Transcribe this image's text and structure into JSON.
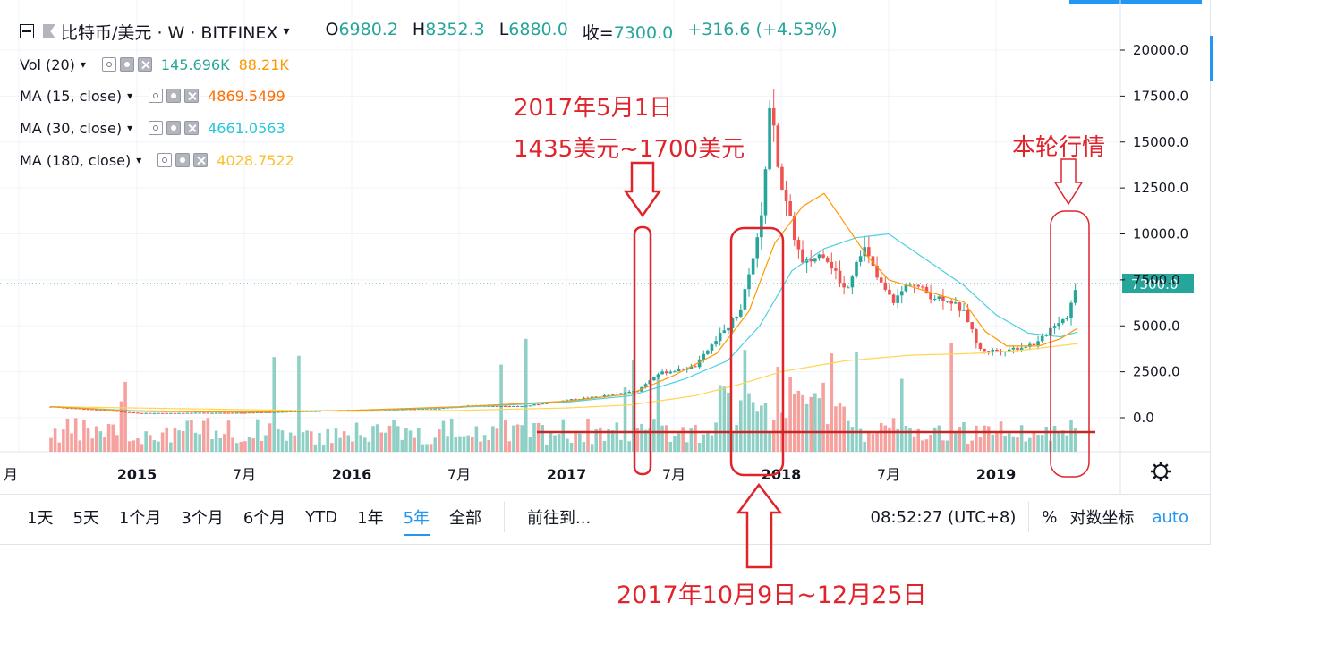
{
  "header": {
    "symbol": "比特币/美元 · W · BITFINEX",
    "open_label": "O",
    "open": "6980.2",
    "high_label": "H",
    "high": "8352.3",
    "low_label": "L",
    "low": "6880.0",
    "close_label": "收=",
    "close": "7300.0",
    "change": "+316.6 (+4.53%)"
  },
  "indicators": [
    {
      "name": "Vol (20)",
      "values": [
        "145.696K",
        "88.21K"
      ],
      "colors": [
        "#26a69a",
        "#ff9800"
      ]
    },
    {
      "name": "MA (15, close)",
      "values": [
        "4869.5499"
      ],
      "colors": [
        "#ff6d00"
      ]
    },
    {
      "name": "MA (30, close)",
      "values": [
        "4661.0563"
      ],
      "colors": [
        "#26c6da"
      ]
    },
    {
      "name": "MA (180, close)",
      "values": [
        "4028.7522"
      ],
      "colors": [
        "#fbc02d"
      ]
    }
  ],
  "toolbar": {
    "timeframes": [
      "1天",
      "5天",
      "1个月",
      "3个月",
      "6个月",
      "YTD",
      "1年",
      "5年",
      "全部"
    ],
    "active": "5年",
    "goto": "前往到...",
    "time": "08:52:27 (UTC+8)",
    "percent": "%",
    "log": "对数坐标",
    "auto": "auto"
  },
  "annotations": {
    "may": "2017年5月1日",
    "range": "1435美元~1700美元",
    "current": "本轮行情",
    "octdec": "2017年10月9日~12月25日"
  },
  "chart_data": {
    "type": "candlestick",
    "x_ticks": [
      "月",
      "2015",
      "7月",
      "2016",
      "7月",
      "2017",
      "7月",
      "2018",
      "7月",
      "2019"
    ],
    "y_ticks": [
      0,
      2500,
      5000,
      7500,
      10000,
      12500,
      15000,
      17500,
      20000
    ],
    "y_tick_labels": [
      "0.0",
      "2500.0",
      "5000.0",
      "7500.0",
      "10000.0",
      "12500.0",
      "15000.0",
      "17500.0",
      "20000.0"
    ],
    "last_price": 7300.0,
    "last_price_label": "7300.0",
    "colors": {
      "up": "#26a69a",
      "down": "#ef5350",
      "vol_up": "#8fd0c6",
      "vol_down": "#f5a19e",
      "ma15": "#ff9800",
      "ma30": "#4dd0e1",
      "ma180": "#ffd54f"
    },
    "close_anchors": [
      [
        2014.6,
        600
      ],
      [
        2014.9,
        350
      ],
      [
        2015.0,
        250
      ],
      [
        2015.5,
        270
      ],
      [
        2016.0,
        420
      ],
      [
        2016.4,
        500
      ],
      [
        2016.55,
        650
      ],
      [
        2016.8,
        620
      ],
      [
        2017.0,
        960
      ],
      [
        2017.15,
        1150
      ],
      [
        2017.33,
        1450
      ],
      [
        2017.42,
        2400
      ],
      [
        2017.5,
        2550
      ],
      [
        2017.6,
        2800
      ],
      [
        2017.7,
        4300
      ],
      [
        2017.8,
        5600
      ],
      [
        2017.86,
        8000
      ],
      [
        2017.91,
        11000
      ],
      [
        2017.95,
        17500
      ],
      [
        2017.98,
        13800
      ],
      [
        2018.03,
        11200
      ],
      [
        2018.1,
        8300
      ],
      [
        2018.2,
        9000
      ],
      [
        2018.3,
        6900
      ],
      [
        2018.38,
        9400
      ],
      [
        2018.45,
        7500
      ],
      [
        2018.52,
        6300
      ],
      [
        2018.6,
        7400
      ],
      [
        2018.7,
        6600
      ],
      [
        2018.78,
        6450
      ],
      [
        2018.86,
        5600
      ],
      [
        2018.92,
        3700
      ],
      [
        2019.0,
        3650
      ],
      [
        2019.1,
        3800
      ],
      [
        2019.2,
        4100
      ],
      [
        2019.27,
        5100
      ],
      [
        2019.33,
        5500
      ],
      [
        2019.38,
        7300
      ]
    ],
    "ma15_anchors": [
      [
        2014.6,
        600
      ],
      [
        2015.0,
        350
      ],
      [
        2015.5,
        300
      ],
      [
        2016.0,
        400
      ],
      [
        2016.5,
        600
      ],
      [
        2017.0,
        900
      ],
      [
        2017.3,
        1300
      ],
      [
        2017.5,
        2300
      ],
      [
        2017.7,
        3500
      ],
      [
        2017.85,
        5800
      ],
      [
        2017.97,
        9500
      ],
      [
        2018.1,
        11500
      ],
      [
        2018.2,
        12200
      ],
      [
        2018.3,
        10500
      ],
      [
        2018.4,
        8800
      ],
      [
        2018.5,
        7500
      ],
      [
        2018.7,
        6800
      ],
      [
        2018.85,
        6300
      ],
      [
        2018.95,
        4700
      ],
      [
        2019.05,
        3900
      ],
      [
        2019.2,
        3900
      ],
      [
        2019.3,
        4300
      ],
      [
        2019.38,
        4870
      ]
    ],
    "ma30_anchors": [
      [
        2014.6,
        600
      ],
      [
        2015.0,
        380
      ],
      [
        2015.5,
        310
      ],
      [
        2016.0,
        390
      ],
      [
        2016.5,
        570
      ],
      [
        2017.0,
        850
      ],
      [
        2017.3,
        1200
      ],
      [
        2017.55,
        2100
      ],
      [
        2017.75,
        3100
      ],
      [
        2017.9,
        5000
      ],
      [
        2018.05,
        8000
      ],
      [
        2018.2,
        9200
      ],
      [
        2018.35,
        9800
      ],
      [
        2018.5,
        10000
      ],
      [
        2018.65,
        8800
      ],
      [
        2018.85,
        7200
      ],
      [
        2019.0,
        5600
      ],
      [
        2019.15,
        4600
      ],
      [
        2019.3,
        4400
      ],
      [
        2019.38,
        4660
      ]
    ],
    "ma180_anchors": [
      [
        2014.6,
        600
      ],
      [
        2016.0,
        350
      ],
      [
        2016.5,
        400
      ],
      [
        2017.0,
        530
      ],
      [
        2017.3,
        700
      ],
      [
        2017.6,
        1200
      ],
      [
        2017.8,
        1800
      ],
      [
        2018.0,
        2500
      ],
      [
        2018.3,
        3100
      ],
      [
        2018.6,
        3400
      ],
      [
        2018.9,
        3500
      ],
      [
        2019.1,
        3650
      ],
      [
        2019.38,
        4030
      ]
    ]
  }
}
